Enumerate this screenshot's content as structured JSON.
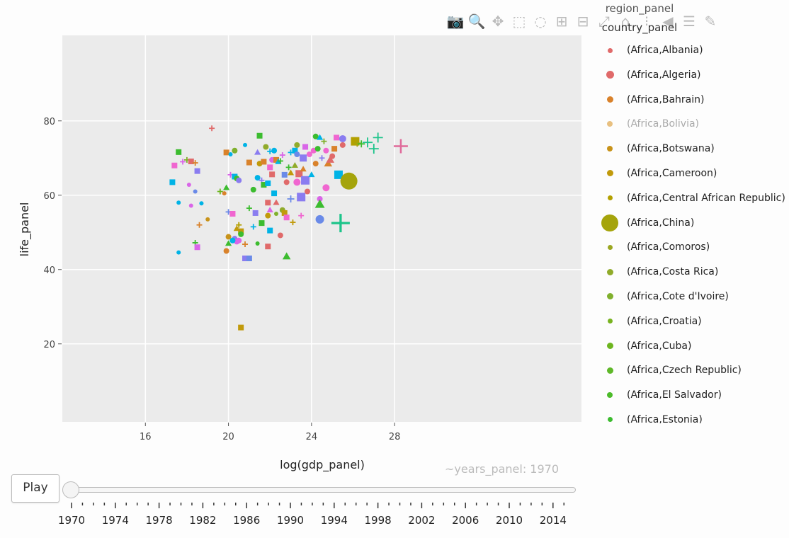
{
  "modebar": {
    "icons": [
      "camera-icon",
      "zoom-icon",
      "pan-icon",
      "box-select-icon",
      "lasso-icon",
      "zoom-in-icon",
      "zoom-out-icon",
      "autoscale-icon",
      "reset-axes-icon",
      "spike-lines-icon",
      "hover-closest-icon",
      "hover-compare-icon",
      "plotly-logo-icon"
    ],
    "glyphs": [
      "📷",
      "🔍",
      "✥",
      "⬚",
      "◌",
      "⊞",
      "⊟",
      "⤢",
      "⌂",
      "⁝",
      "◀",
      "☰",
      "✎"
    ]
  },
  "legend": {
    "title_line1": "region_panel",
    "title_line2": "country_panel",
    "items": [
      {
        "label": "(Africa,Albania)",
        "color": "#e06a6a",
        "size": 7,
        "faded": false
      },
      {
        "label": "(Africa,Algeria)",
        "color": "#e06a6a",
        "size": 11,
        "faded": false
      },
      {
        "label": "(Africa,Bahrain)",
        "color": "#d9822b",
        "size": 9,
        "faded": false
      },
      {
        "label": "(Africa,Bolivia)",
        "color": "#e8c080",
        "size": 8,
        "faded": true
      },
      {
        "label": "(Africa,Botswana)",
        "color": "#c8931a",
        "size": 8,
        "faded": false
      },
      {
        "label": "(Africa,Cameroon)",
        "color": "#c19a0b",
        "size": 9,
        "faded": false
      },
      {
        "label": "(Africa,Central African Republic)",
        "color": "#b3a000",
        "size": 7,
        "faded": false
      },
      {
        "label": "(Africa,China)",
        "color": "#a5a40b",
        "size": 24,
        "faded": false
      },
      {
        "label": "(Africa,Comoros)",
        "color": "#9ba721",
        "size": 7,
        "faded": false
      },
      {
        "label": "(Africa,Costa Rica)",
        "color": "#90ab2a",
        "size": 9,
        "faded": false
      },
      {
        "label": "(Africa,Cote d'Ivoire)",
        "color": "#80b02d",
        "size": 9,
        "faded": false
      },
      {
        "label": "(Africa,Croatia)",
        "color": "#78b31f",
        "size": 7,
        "faded": false
      },
      {
        "label": "(Africa,Cuba)",
        "color": "#6db51f",
        "size": 9,
        "faded": false
      },
      {
        "label": "(Africa,Czech Republic)",
        "color": "#5fb829",
        "size": 9,
        "faded": false
      },
      {
        "label": "(Africa,El Salvador)",
        "color": "#4cbb2a",
        "size": 8,
        "faded": false
      },
      {
        "label": "(Africa,Estonia)",
        "color": "#3cbc2f",
        "size": 7,
        "faded": false
      }
    ]
  },
  "slider": {
    "play_label": "Play",
    "current_label": "~years_panel: 1970",
    "tick_labels": [
      "1970",
      "1974",
      "1978",
      "1982",
      "1986",
      "1990",
      "1994",
      "1998",
      "2002",
      "2006",
      "2010",
      "2014"
    ]
  },
  "chart_data": {
    "type": "scatter",
    "xlabel": "log(gdp_panel)",
    "ylabel": "life_panel",
    "xlim": [
      12.0,
      37.0
    ],
    "ylim": [
      -1.0,
      103.0
    ],
    "xticks": [
      16,
      20,
      24,
      28
    ],
    "yticks": [
      20,
      40,
      60,
      80
    ],
    "grid": true,
    "legend_placement": "right",
    "frame": "1970",
    "points": [
      {
        "x": 19.2,
        "y": 78.0,
        "c": "#e06a6a",
        "s": "cross",
        "r": 4
      },
      {
        "x": 17.3,
        "y": 63.5,
        "c": "#00b3e6",
        "s": "square",
        "r": 4
      },
      {
        "x": 17.4,
        "y": 68.0,
        "c": "#f066d0",
        "s": "square",
        "r": 4
      },
      {
        "x": 17.6,
        "y": 71.6,
        "c": "#3cbc2f",
        "s": "square",
        "r": 4
      },
      {
        "x": 17.8,
        "y": 69.0,
        "c": "#d966e8",
        "s": "cross",
        "r": 4
      },
      {
        "x": 18.0,
        "y": 69.5,
        "c": "#80b02d",
        "s": "cross",
        "r": 4
      },
      {
        "x": 18.1,
        "y": 62.8,
        "c": "#d966e8",
        "s": "circle",
        "r": 3
      },
      {
        "x": 18.2,
        "y": 69.1,
        "c": "#e06a6a",
        "s": "square",
        "r": 4
      },
      {
        "x": 18.4,
        "y": 68.7,
        "c": "#d9822b",
        "s": "cross",
        "r": 4
      },
      {
        "x": 18.5,
        "y": 66.5,
        "c": "#8a7cf0",
        "s": "square",
        "r": 4
      },
      {
        "x": 18.4,
        "y": 61.0,
        "c": "#6a8ae8",
        "s": "circle",
        "r": 3
      },
      {
        "x": 18.2,
        "y": 57.2,
        "c": "#d966e8",
        "s": "circle",
        "r": 3
      },
      {
        "x": 18.7,
        "y": 57.8,
        "c": "#00b3e6",
        "s": "circle",
        "r": 3
      },
      {
        "x": 17.6,
        "y": 58.0,
        "c": "#00b3e6",
        "s": "circle",
        "r": 3
      },
      {
        "x": 17.6,
        "y": 44.6,
        "c": "#00b3e6",
        "s": "circle",
        "r": 3
      },
      {
        "x": 18.4,
        "y": 47.2,
        "c": "#3cbc2f",
        "s": "cross",
        "r": 4
      },
      {
        "x": 18.5,
        "y": 46.0,
        "c": "#d966e8",
        "s": "square",
        "r": 4
      },
      {
        "x": 18.6,
        "y": 52.0,
        "c": "#d9822b",
        "s": "cross",
        "r": 4
      },
      {
        "x": 19.0,
        "y": 53.5,
        "c": "#c8931a",
        "s": "circle",
        "r": 3
      },
      {
        "x": 19.6,
        "y": 61.0,
        "c": "#6db51f",
        "s": "cross",
        "r": 4
      },
      {
        "x": 19.8,
        "y": 60.5,
        "c": "#d9822b",
        "s": "circle",
        "r": 3
      },
      {
        "x": 19.9,
        "y": 62.0,
        "c": "#3cbc2f",
        "s": "triangle",
        "r": 4
      },
      {
        "x": 19.9,
        "y": 71.5,
        "c": "#d9822b",
        "s": "square",
        "r": 4
      },
      {
        "x": 20.0,
        "y": 55.5,
        "c": "#6a8ae8",
        "s": "cross",
        "r": 4
      },
      {
        "x": 20.1,
        "y": 71.0,
        "c": "#00b3e6",
        "s": "circle",
        "r": 3
      },
      {
        "x": 20.1,
        "y": 65.5,
        "c": "#d966e8",
        "s": "cross",
        "r": 4
      },
      {
        "x": 20.3,
        "y": 72.0,
        "c": "#80b02d",
        "s": "circle",
        "r": 4
      },
      {
        "x": 20.3,
        "y": 65.0,
        "c": "#00b3e6",
        "s": "square",
        "r": 4
      },
      {
        "x": 20.4,
        "y": 64.5,
        "c": "#3cbc2f",
        "s": "circle",
        "r": 4
      },
      {
        "x": 20.5,
        "y": 64.0,
        "c": "#8a7cf0",
        "s": "circle",
        "r": 4
      },
      {
        "x": 20.2,
        "y": 55.0,
        "c": "#f066d0",
        "s": "square",
        "r": 4
      },
      {
        "x": 20.5,
        "y": 52.0,
        "c": "#b3a000",
        "s": "cross",
        "r": 4
      },
      {
        "x": 20.4,
        "y": 51.0,
        "c": "#c19a0b",
        "s": "triangle",
        "r": 4
      },
      {
        "x": 20.6,
        "y": 50.3,
        "c": "#c19a0b",
        "s": "square",
        "r": 4
      },
      {
        "x": 20.8,
        "y": 73.5,
        "c": "#00b3e6",
        "s": "circle",
        "r": 3
      },
      {
        "x": 20.0,
        "y": 48.8,
        "c": "#c8931a",
        "s": "circle",
        "r": 4
      },
      {
        "x": 20.0,
        "y": 47.0,
        "c": "#3cbc2f",
        "s": "triangle",
        "r": 4
      },
      {
        "x": 19.9,
        "y": 45.0,
        "c": "#d9822b",
        "s": "circle",
        "r": 4
      },
      {
        "x": 20.3,
        "y": 48.3,
        "c": "#8a7cf0",
        "s": "circle",
        "r": 4
      },
      {
        "x": 20.4,
        "y": 47.5,
        "c": "#d966e8",
        "s": "circle",
        "r": 4
      },
      {
        "x": 20.2,
        "y": 47.8,
        "c": "#00b3e6",
        "s": "circle",
        "r": 4
      },
      {
        "x": 20.5,
        "y": 47.8,
        "c": "#d966e8",
        "s": "circle",
        "r": 4
      },
      {
        "x": 20.6,
        "y": 49.5,
        "c": "#3cbc2f",
        "s": "circle",
        "r": 4
      },
      {
        "x": 20.8,
        "y": 46.8,
        "c": "#d9822b",
        "s": "cross",
        "r": 4
      },
      {
        "x": 20.8,
        "y": 43.0,
        "c": "#8a7cf0",
        "s": "square",
        "r": 4
      },
      {
        "x": 21.0,
        "y": 43.0,
        "c": "#6a8ae8",
        "s": "square",
        "r": 4
      },
      {
        "x": 20.6,
        "y": 24.4,
        "c": "#c19a0b",
        "s": "square",
        "r": 4
      },
      {
        "x": 21.0,
        "y": 56.5,
        "c": "#3cbc2f",
        "s": "cross",
        "r": 4
      },
      {
        "x": 21.2,
        "y": 51.5,
        "c": "#00b3e6",
        "s": "cross",
        "r": 4
      },
      {
        "x": 21.2,
        "y": 61.5,
        "c": "#3cbc2f",
        "s": "circle",
        "r": 4
      },
      {
        "x": 21.3,
        "y": 55.2,
        "c": "#8a7cf0",
        "s": "square",
        "r": 4
      },
      {
        "x": 21.0,
        "y": 68.8,
        "c": "#d9822b",
        "s": "square",
        "r": 4
      },
      {
        "x": 21.5,
        "y": 76.0,
        "c": "#3cbc2f",
        "s": "square",
        "r": 4
      },
      {
        "x": 21.4,
        "y": 71.5,
        "c": "#8a7cf0",
        "s": "triangle",
        "r": 4
      },
      {
        "x": 21.4,
        "y": 64.7,
        "c": "#00b3e6",
        "s": "circle",
        "r": 4
      },
      {
        "x": 21.6,
        "y": 64.0,
        "c": "#8a7cf0",
        "s": "cross",
        "r": 4
      },
      {
        "x": 21.5,
        "y": 68.5,
        "c": "#c19a0b",
        "s": "circle",
        "r": 4
      },
      {
        "x": 21.4,
        "y": 47.0,
        "c": "#3cbc2f",
        "s": "circle",
        "r": 3
      },
      {
        "x": 21.6,
        "y": 52.5,
        "c": "#3cbc2f",
        "s": "square",
        "r": 4
      },
      {
        "x": 21.7,
        "y": 69.0,
        "c": "#d9822b",
        "s": "square",
        "r": 4
      },
      {
        "x": 21.8,
        "y": 73.0,
        "c": "#90ab2a",
        "s": "circle",
        "r": 4
      },
      {
        "x": 21.7,
        "y": 62.8,
        "c": "#3cbc2f",
        "s": "square",
        "r": 4
      },
      {
        "x": 21.9,
        "y": 63.2,
        "c": "#00b3e6",
        "s": "square",
        "r": 4
      },
      {
        "x": 21.9,
        "y": 58.0,
        "c": "#e06a6a",
        "s": "square",
        "r": 4
      },
      {
        "x": 22.0,
        "y": 71.8,
        "c": "#00b3e6",
        "s": "cross",
        "r": 4
      },
      {
        "x": 22.0,
        "y": 67.5,
        "c": "#f066d0",
        "s": "square",
        "r": 4
      },
      {
        "x": 22.0,
        "y": 56.0,
        "c": "#d966e8",
        "s": "triangle",
        "r": 4
      },
      {
        "x": 21.9,
        "y": 54.5,
        "c": "#c19a0b",
        "s": "circle",
        "r": 4
      },
      {
        "x": 21.9,
        "y": 46.2,
        "c": "#e06a6a",
        "s": "square",
        "r": 4
      },
      {
        "x": 22.0,
        "y": 50.5,
        "c": "#00b3e6",
        "s": "square",
        "r": 4
      },
      {
        "x": 22.1,
        "y": 69.5,
        "c": "#d966e8",
        "s": "circle",
        "r": 4
      },
      {
        "x": 22.1,
        "y": 65.6,
        "c": "#e06a6a",
        "s": "square",
        "r": 4
      },
      {
        "x": 22.2,
        "y": 72.0,
        "c": "#00b3e6",
        "s": "circle",
        "r": 4
      },
      {
        "x": 22.2,
        "y": 60.5,
        "c": "#00b3e6",
        "s": "square",
        "r": 4
      },
      {
        "x": 22.3,
        "y": 69.5,
        "c": "#d9822b",
        "s": "square",
        "r": 4
      },
      {
        "x": 22.3,
        "y": 58.0,
        "c": "#e06a6a",
        "s": "triangle",
        "r": 4
      },
      {
        "x": 22.3,
        "y": 55.0,
        "c": "#80b02d",
        "s": "circle",
        "r": 3
      },
      {
        "x": 22.4,
        "y": 69.0,
        "c": "#00b3e6",
        "s": "triangle",
        "r": 4
      },
      {
        "x": 22.5,
        "y": 69.2,
        "c": "#3cbc2f",
        "s": "cross",
        "r": 4
      },
      {
        "x": 22.5,
        "y": 49.2,
        "c": "#e06a6a",
        "s": "circle",
        "r": 4
      },
      {
        "x": 22.6,
        "y": 70.8,
        "c": "#d966e8",
        "s": "cross",
        "r": 4
      },
      {
        "x": 22.6,
        "y": 56.0,
        "c": "#90ab2a",
        "s": "circle",
        "r": 4
      },
      {
        "x": 22.7,
        "y": 65.5,
        "c": "#6a8ae8",
        "s": "square",
        "r": 4
      },
      {
        "x": 22.7,
        "y": 55.2,
        "c": "#c19a0b",
        "s": "square",
        "r": 4
      },
      {
        "x": 22.8,
        "y": 63.5,
        "c": "#e06a6a",
        "s": "circle",
        "r": 4
      },
      {
        "x": 22.8,
        "y": 54.0,
        "c": "#f066d0",
        "s": "square",
        "r": 4
      },
      {
        "x": 22.8,
        "y": 43.5,
        "c": "#3cbc2f",
        "s": "triangle",
        "r": 5
      },
      {
        "x": 22.9,
        "y": 67.5,
        "c": "#3cbc2f",
        "s": "cross",
        "r": 4
      },
      {
        "x": 23.0,
        "y": 71.5,
        "c": "#00b3e6",
        "s": "cross",
        "r": 4
      },
      {
        "x": 23.0,
        "y": 66.0,
        "c": "#c19a0b",
        "s": "triangle",
        "r": 4
      },
      {
        "x": 23.0,
        "y": 59.0,
        "c": "#6a8ae8",
        "s": "cross",
        "r": 5
      },
      {
        "x": 23.1,
        "y": 52.7,
        "c": "#c19a0b",
        "s": "cross",
        "r": 4
      },
      {
        "x": 23.2,
        "y": 72.0,
        "c": "#00b3e6",
        "s": "square",
        "r": 4
      },
      {
        "x": 23.2,
        "y": 68.0,
        "c": "#90ab2a",
        "s": "triangle",
        "r": 4
      },
      {
        "x": 23.3,
        "y": 73.5,
        "c": "#90ab2a",
        "s": "circle",
        "r": 4
      },
      {
        "x": 23.3,
        "y": 71.0,
        "c": "#6a8ae8",
        "s": "circle",
        "r": 4
      },
      {
        "x": 23.4,
        "y": 65.8,
        "c": "#e06a6a",
        "s": "square",
        "r": 5
      },
      {
        "x": 23.3,
        "y": 63.5,
        "c": "#f066d0",
        "s": "circle",
        "r": 5
      },
      {
        "x": 23.5,
        "y": 59.5,
        "c": "#8a7cf0",
        "s": "square",
        "r": 6
      },
      {
        "x": 23.5,
        "y": 54.5,
        "c": "#f066d0",
        "s": "cross",
        "r": 4
      },
      {
        "x": 23.6,
        "y": 70.0,
        "c": "#8a7cf0",
        "s": "square",
        "r": 5
      },
      {
        "x": 23.6,
        "y": 67.0,
        "c": "#d9822b",
        "s": "triangle",
        "r": 4
      },
      {
        "x": 23.7,
        "y": 73.0,
        "c": "#d966e8",
        "s": "square",
        "r": 4
      },
      {
        "x": 23.7,
        "y": 64.0,
        "c": "#8a7cf0",
        "s": "square",
        "r": 6
      },
      {
        "x": 23.8,
        "y": 61.0,
        "c": "#e06a6a",
        "s": "circle",
        "r": 4
      },
      {
        "x": 23.9,
        "y": 71.0,
        "c": "#f066d0",
        "s": "circle",
        "r": 4
      },
      {
        "x": 24.0,
        "y": 65.5,
        "c": "#00b3e6",
        "s": "triangle",
        "r": 4
      },
      {
        "x": 24.1,
        "y": 72.0,
        "c": "#f066d0",
        "s": "circle",
        "r": 4
      },
      {
        "x": 24.2,
        "y": 68.5,
        "c": "#d9822b",
        "s": "circle",
        "r": 4
      },
      {
        "x": 24.2,
        "y": 75.8,
        "c": "#3cbc2f",
        "s": "circle",
        "r": 4
      },
      {
        "x": 24.3,
        "y": 72.5,
        "c": "#3cbc2f",
        "s": "circle",
        "r": 4
      },
      {
        "x": 24.4,
        "y": 75.5,
        "c": "#00b3e6",
        "s": "triangle",
        "r": 4
      },
      {
        "x": 24.4,
        "y": 59.0,
        "c": "#d966e8",
        "s": "circle",
        "r": 4
      },
      {
        "x": 24.4,
        "y": 57.5,
        "c": "#3cbc2f",
        "s": "triangle",
        "r": 6
      },
      {
        "x": 24.4,
        "y": 53.5,
        "c": "#6a8ae8",
        "s": "circle",
        "r": 6
      },
      {
        "x": 24.5,
        "y": 70.0,
        "c": "#8a7cf0",
        "s": "cross",
        "r": 4
      },
      {
        "x": 24.6,
        "y": 74.5,
        "c": "#80b02d",
        "s": "cross",
        "r": 4
      },
      {
        "x": 24.7,
        "y": 72.0,
        "c": "#f066d0",
        "s": "circle",
        "r": 4
      },
      {
        "x": 24.7,
        "y": 62.0,
        "c": "#f066d0",
        "s": "circle",
        "r": 5
      },
      {
        "x": 24.8,
        "y": 68.5,
        "c": "#d9822b",
        "s": "triangle",
        "r": 5
      },
      {
        "x": 24.9,
        "y": 69.5,
        "c": "#e06a6a",
        "s": "triangle",
        "r": 5
      },
      {
        "x": 25.0,
        "y": 70.5,
        "c": "#e06a6a",
        "s": "circle",
        "r": 4
      },
      {
        "x": 25.1,
        "y": 72.5,
        "c": "#d9822b",
        "s": "square",
        "r": 4
      },
      {
        "x": 25.2,
        "y": 75.5,
        "c": "#f066d0",
        "s": "square",
        "r": 4
      },
      {
        "x": 25.3,
        "y": 65.5,
        "c": "#00b3e6",
        "s": "square",
        "r": 6
      },
      {
        "x": 25.5,
        "y": 75.2,
        "c": "#8a7cf0",
        "s": "circle",
        "r": 5
      },
      {
        "x": 25.5,
        "y": 73.5,
        "c": "#e06a6a",
        "s": "circle",
        "r": 4
      },
      {
        "x": 25.8,
        "y": 63.8,
        "c": "#a5a40b",
        "s": "circle",
        "r": 12
      },
      {
        "x": 25.4,
        "y": 52.5,
        "c": "#1cc48a",
        "s": "cross",
        "r": 13
      },
      {
        "x": 26.1,
        "y": 74.5,
        "c": "#b3a000",
        "s": "square",
        "r": 6
      },
      {
        "x": 26.2,
        "y": 74.0,
        "c": "#a5a40b",
        "s": "cross",
        "r": 5
      },
      {
        "x": 26.4,
        "y": 73.8,
        "c": "#3cbc2f",
        "s": "cross",
        "r": 5
      },
      {
        "x": 26.7,
        "y": 74.2,
        "c": "#1cc48a",
        "s": "cross",
        "r": 7
      },
      {
        "x": 27.0,
        "y": 72.5,
        "c": "#1cc48a",
        "s": "cross",
        "r": 7
      },
      {
        "x": 27.2,
        "y": 75.5,
        "c": "#1cc48a",
        "s": "cross",
        "r": 7
      },
      {
        "x": 28.3,
        "y": 73.2,
        "c": "#e06a9a",
        "s": "cross",
        "r": 10
      }
    ]
  }
}
